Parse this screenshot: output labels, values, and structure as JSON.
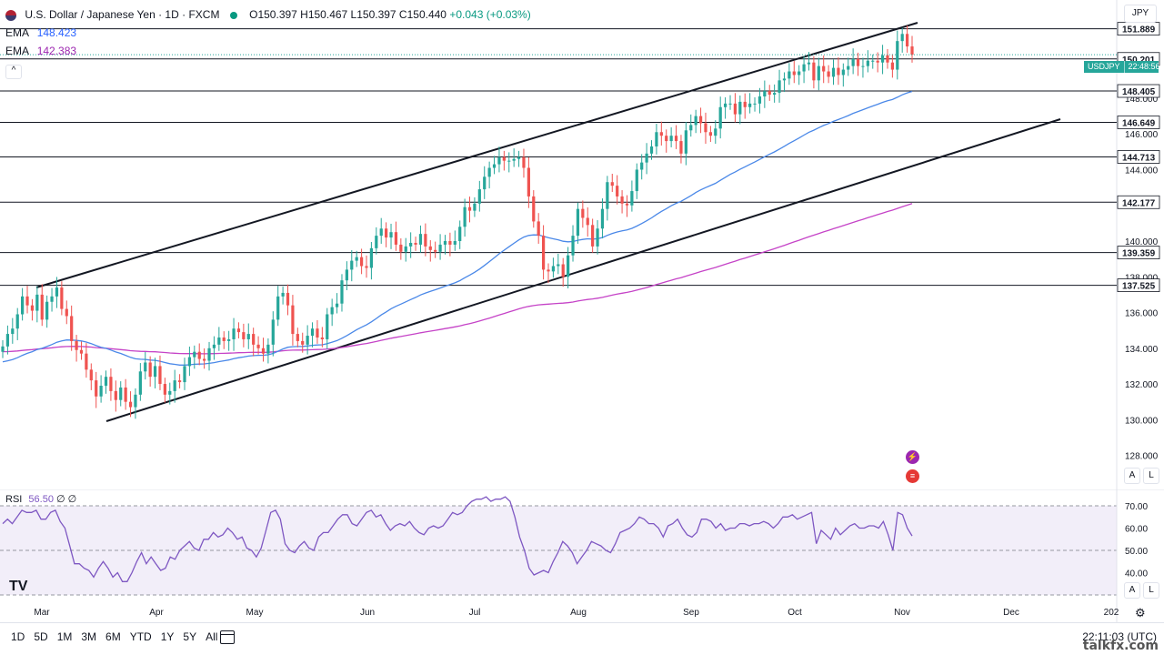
{
  "header": {
    "symbol": "U.S. Dollar / Japanese Yen · 1D · FXCM",
    "ohlc": "O150.397 H150.467 L150.397 C150.440",
    "change": "+0.043 (+0.03%)",
    "ema1_label": "EMA",
    "ema1_value": "148.423",
    "ema2_label": "EMA",
    "ema2_value": "142.383",
    "collapse_glyph": "^"
  },
  "price_scale": {
    "currency": "JPY",
    "ticker_tag": "USDJPY",
    "countdown": "22:48:56",
    "a_label": "A",
    "l_label": "L"
  },
  "rsi": {
    "label": "RSI",
    "value": "56.50",
    "extra": "∅ ∅"
  },
  "bottom": {
    "ranges": [
      "1D",
      "5D",
      "1M",
      "3M",
      "6M",
      "YTD",
      "1Y",
      "5Y",
      "All"
    ],
    "clock": "22:11:03 (UTC)",
    "watermark": "talkfx.com",
    "logo": "TV",
    "rsi_a": "A",
    "rsi_l": "L"
  },
  "chart_data": {
    "type": "candlestick",
    "title": "U.S. Dollar / Japanese Yen · 1D · FXCM",
    "ylim": [
      126.5,
      153.5
    ],
    "y_ticks": [
      128,
      130,
      132,
      134,
      136,
      138,
      140,
      144,
      146,
      148
    ],
    "x_ticks": [
      "Mar",
      "Apr",
      "May",
      "Jun",
      "Jul",
      "Aug",
      "Sep",
      "Oct",
      "Nov",
      "Dec",
      "202"
    ],
    "horizontal_levels": [
      151.889,
      150.201,
      148.405,
      146.649,
      144.713,
      142.177,
      139.359,
      137.525
    ],
    "closes": [
      134.1,
      134.8,
      135.1,
      135.9,
      136.9,
      136.4,
      136.1,
      137.0,
      135.6,
      136.6,
      136.9,
      137.4,
      136.2,
      135.8,
      134.4,
      133.9,
      133.7,
      132.8,
      132.2,
      131.3,
      131.9,
      132.4,
      131.6,
      131.1,
      131.8,
      131.0,
      130.7,
      131.4,
      132.7,
      133.2,
      132.4,
      133.0,
      132.0,
      131.4,
      131.6,
      132.2,
      132.1,
      133.0,
      133.5,
      133.8,
      133.4,
      133.3,
      134.0,
      134.2,
      134.6,
      134.4,
      134.5,
      135.1,
      134.9,
      134.5,
      134.8,
      134.2,
      134.0,
      133.7,
      134.2,
      135.6,
      136.9,
      137.1,
      136.4,
      134.8,
      134.4,
      134.2,
      134.7,
      135.1,
      134.6,
      134.5,
      135.9,
      136.3,
      136.5,
      137.8,
      138.4,
      138.9,
      139.1,
      138.6,
      138.5,
      139.6,
      140.3,
      140.7,
      140.2,
      140.5,
      139.8,
      139.4,
      139.7,
      139.9,
      139.8,
      140.4,
      139.7,
      139.5,
      139.4,
      139.8,
      140.0,
      139.8,
      140.0,
      140.8,
      141.9,
      141.7,
      142.1,
      142.9,
      143.6,
      144.1,
      144.3,
      144.7,
      144.5,
      144.5,
      144.6,
      144.7,
      144.1,
      142.5,
      141.1,
      140.3,
      138.4,
      138.3,
      138.6,
      138.7,
      138.0,
      139.2,
      140.3,
      141.8,
      141.3,
      140.9,
      139.7,
      140.7,
      141.8,
      143.3,
      143.1,
      142.5,
      142.1,
      142.0,
      142.8,
      144.0,
      144.4,
      144.9,
      145.3,
      146.1,
      145.9,
      145.6,
      145.9,
      145.6,
      144.9,
      146.2,
      146.5,
      147.0,
      146.6,
      146.1,
      145.9,
      146.3,
      147.5,
      147.7,
      147.7,
      147.1,
      147.8,
      147.5,
      147.7,
      147.7,
      148.1,
      148.4,
      148.2,
      148.3,
      149.0,
      149.1,
      149.5,
      149.3,
      149.5,
      149.9,
      150.0,
      149.0,
      149.8,
      149.5,
      149.2,
      149.7,
      149.3,
      149.6,
      149.8,
      150.2,
      149.8,
      149.8,
      150.1,
      150.1,
      150.0,
      150.4,
      150.0,
      149.6,
      151.2,
      151.6,
      150.9,
      150.44
    ],
    "ema_fast": {
      "name": "EMA",
      "last": 148.423
    },
    "ema_slow": {
      "name": "EMA",
      "last": 142.383
    },
    "rsi": {
      "ylim": [
        30,
        70
      ],
      "y_ticks": [
        40.0,
        50.0,
        60.0,
        70.0
      ],
      "values": [
        62,
        64,
        62,
        65,
        68,
        67,
        67,
        68,
        64,
        64,
        67,
        68,
        63,
        60,
        52,
        44,
        44,
        42,
        41,
        38,
        42,
        45,
        42,
        38,
        40,
        36,
        36,
        40,
        45,
        49,
        44,
        47,
        44,
        41,
        42,
        47,
        46,
        50,
        52,
        54,
        51,
        50,
        55,
        55,
        58,
        56,
        57,
        60,
        58,
        55,
        56,
        51,
        50,
        47,
        51,
        59,
        67,
        68,
        64,
        53,
        50,
        49,
        52,
        54,
        51,
        50,
        56,
        58,
        58,
        61,
        64,
        66,
        66,
        62,
        61,
        64,
        67,
        68,
        65,
        66,
        62,
        59,
        61,
        62,
        61,
        63,
        60,
        58,
        57,
        60,
        61,
        60,
        61,
        64,
        67,
        66,
        67,
        70,
        72,
        73,
        73,
        74,
        72,
        73,
        73,
        74,
        72,
        65,
        56,
        50,
        42,
        39,
        40,
        41,
        40,
        45,
        49,
        54,
        52,
        49,
        44,
        47,
        50,
        54,
        53,
        52,
        50,
        49,
        53,
        58,
        59,
        60,
        62,
        65,
        64,
        62,
        62,
        60,
        56,
        61,
        62,
        64,
        60,
        57,
        56,
        58,
        64,
        64,
        63,
        60,
        62,
        59,
        60,
        60,
        62,
        62,
        61,
        62,
        62,
        63,
        62,
        60,
        62,
        65,
        65,
        66,
        64,
        65,
        66,
        67,
        53,
        59,
        57,
        55,
        60,
        57,
        59,
        61,
        62,
        60,
        60,
        61,
        61,
        60,
        63,
        57,
        50,
        67,
        66,
        60,
        56.5
      ]
    }
  }
}
